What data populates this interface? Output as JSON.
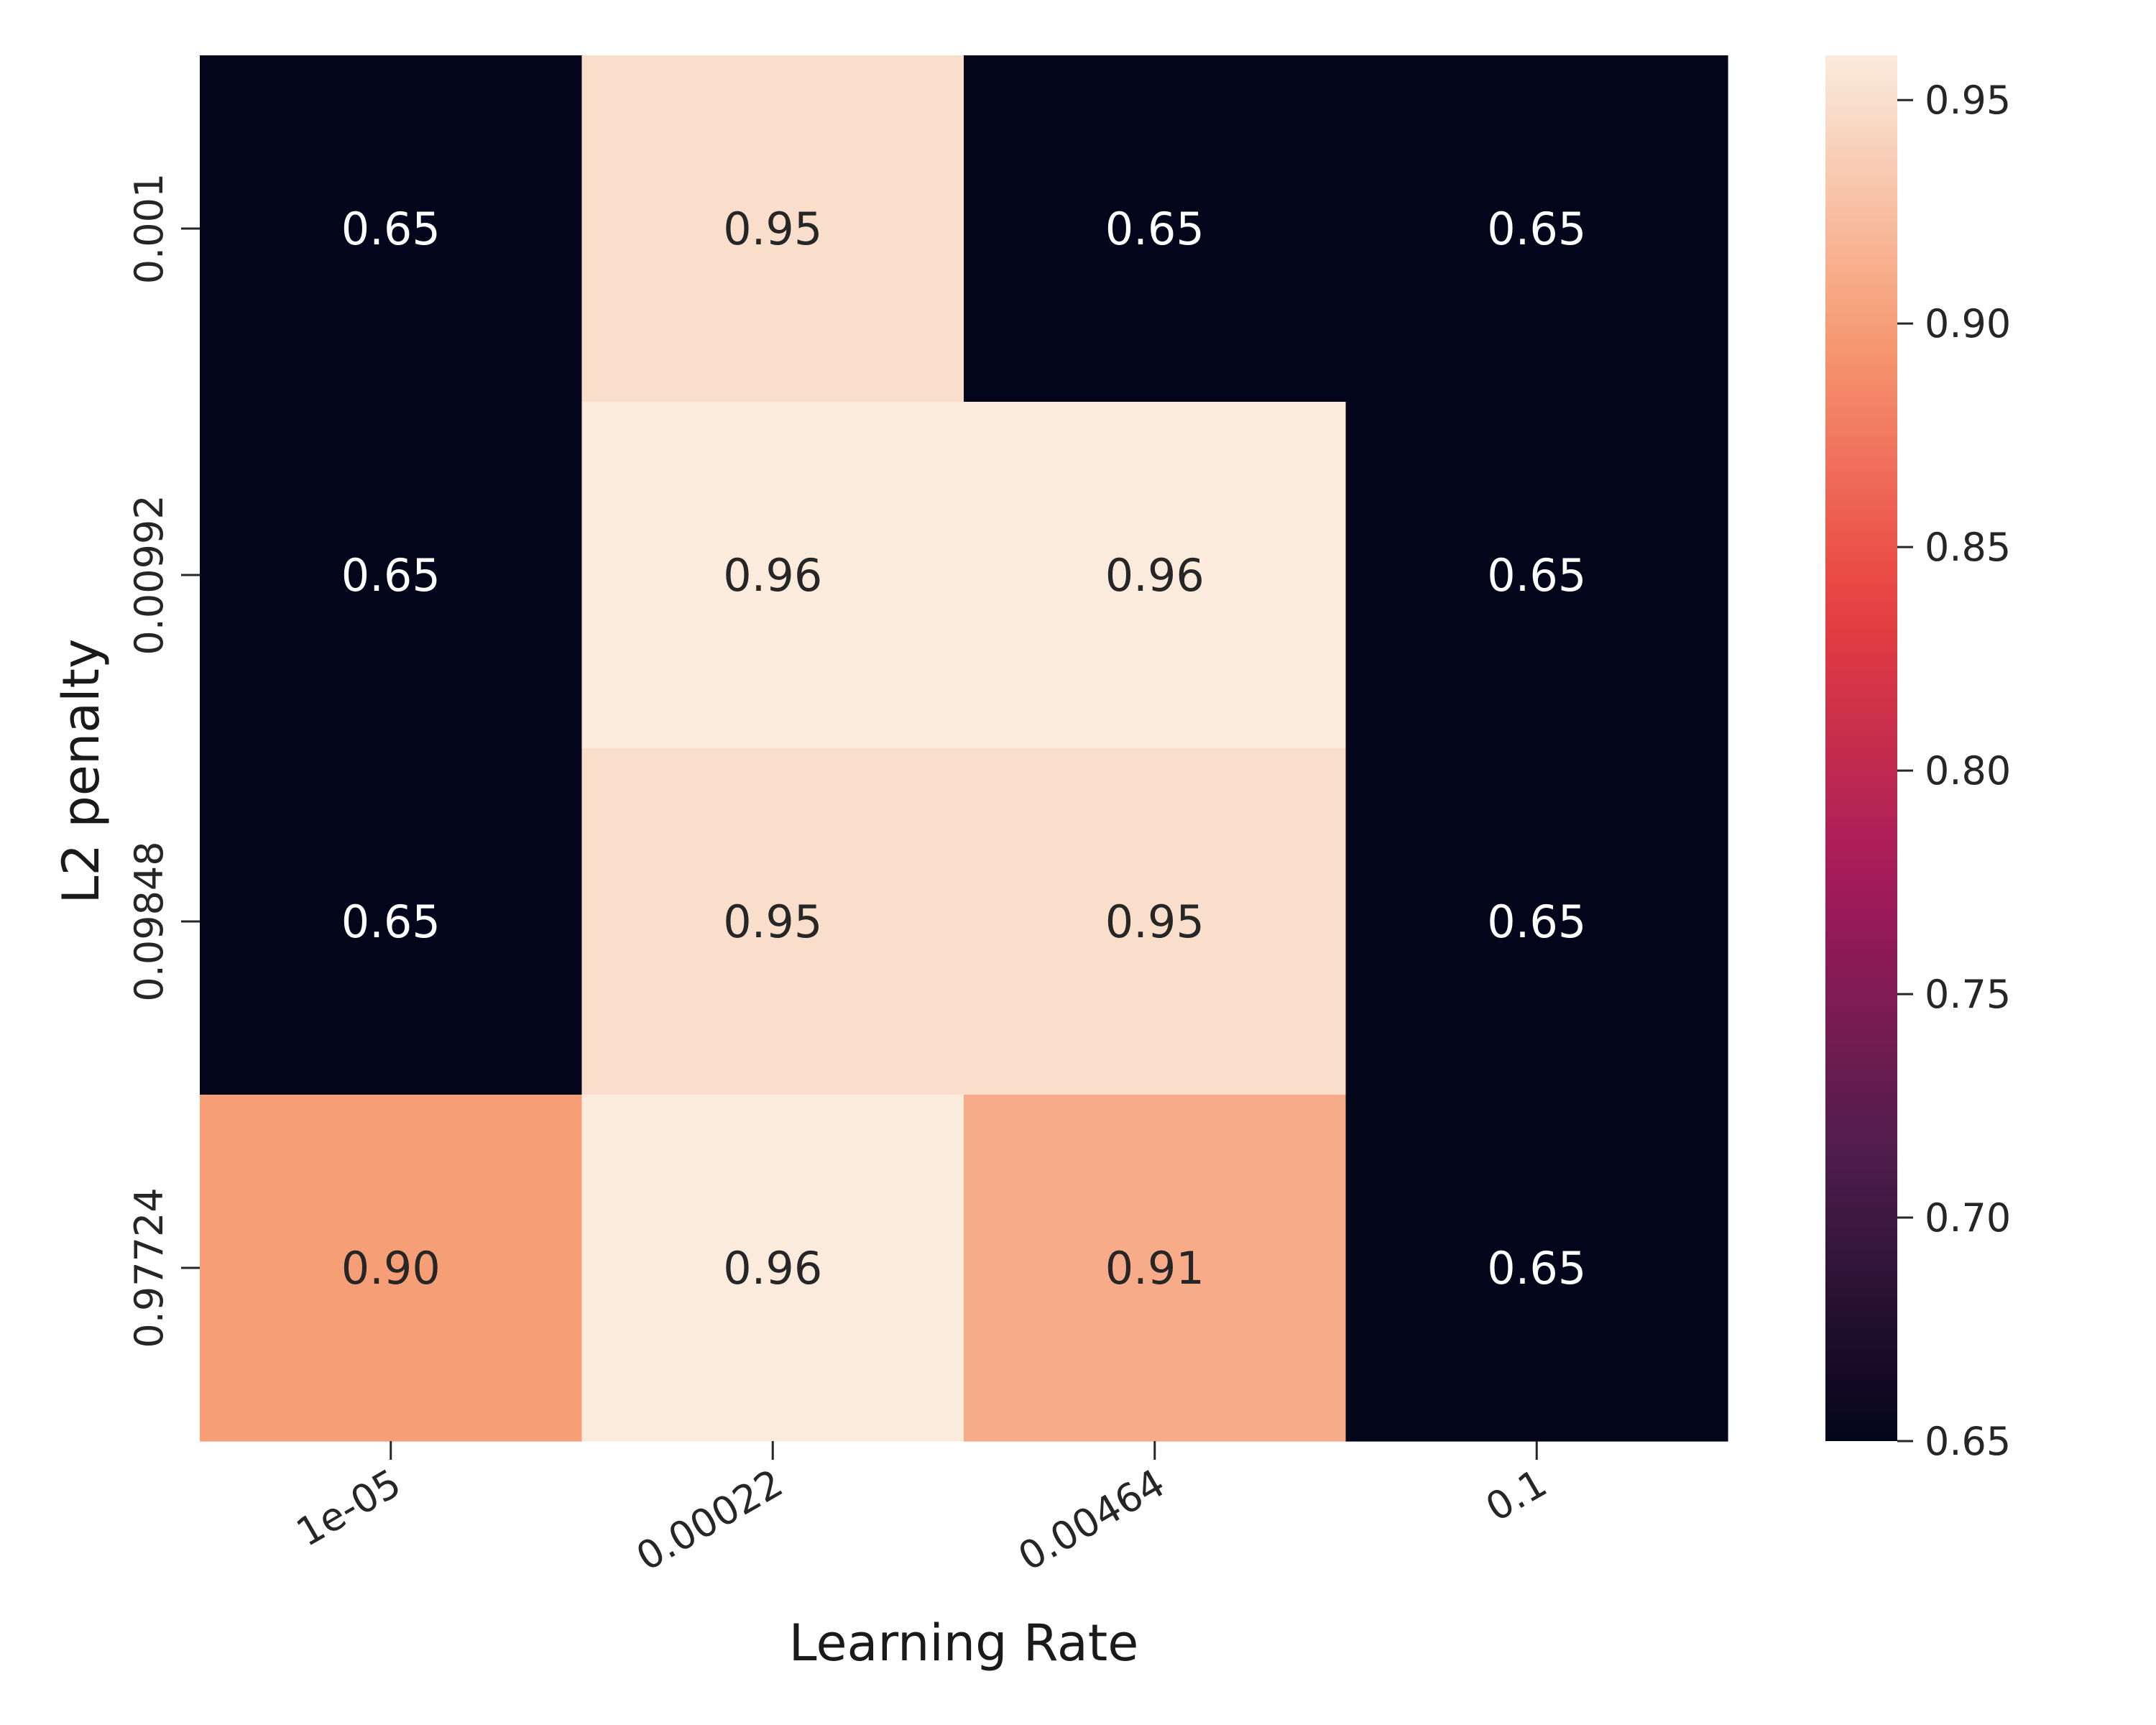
{
  "chart_data": {
    "type": "heatmap",
    "title": "",
    "xlabel": "Learning Rate",
    "ylabel": "L2 penalty",
    "x_categories": [
      "1e-05",
      "0.00022",
      "0.00464",
      "0.1"
    ],
    "y_categories": [
      "0.001",
      "0.00992",
      "0.09848",
      "0.97724"
    ],
    "values": [
      [
        0.65,
        0.95,
        0.65,
        0.65
      ],
      [
        0.65,
        0.96,
        0.96,
        0.65
      ],
      [
        0.65,
        0.95,
        0.95,
        0.65
      ],
      [
        0.9,
        0.96,
        0.91,
        0.65
      ]
    ],
    "cell_labels": [
      [
        "0.65",
        "0.95",
        "0.65",
        "0.65"
      ],
      [
        "0.65",
        "0.96",
        "0.96",
        "0.65"
      ],
      [
        "0.65",
        "0.95",
        "0.95",
        "0.65"
      ],
      [
        "0.90",
        "0.96",
        "0.91",
        "0.65"
      ]
    ],
    "colorbar": {
      "vmin": 0.65,
      "vmax": 0.96,
      "ticks": [
        0.65,
        0.7,
        0.75,
        0.8,
        0.85,
        0.9,
        0.95
      ],
      "tick_labels": [
        "0.65",
        "0.70",
        "0.75",
        "0.80",
        "0.85",
        "0.90",
        "0.95"
      ],
      "colormap": "rocket",
      "colormap_stops": [
        "#03051a",
        "#4c1d4b",
        "#a11a5b",
        "#e83f3f",
        "#f69c73",
        "#faebdd"
      ]
    },
    "grid": false,
    "legend": "colorbar-right"
  }
}
